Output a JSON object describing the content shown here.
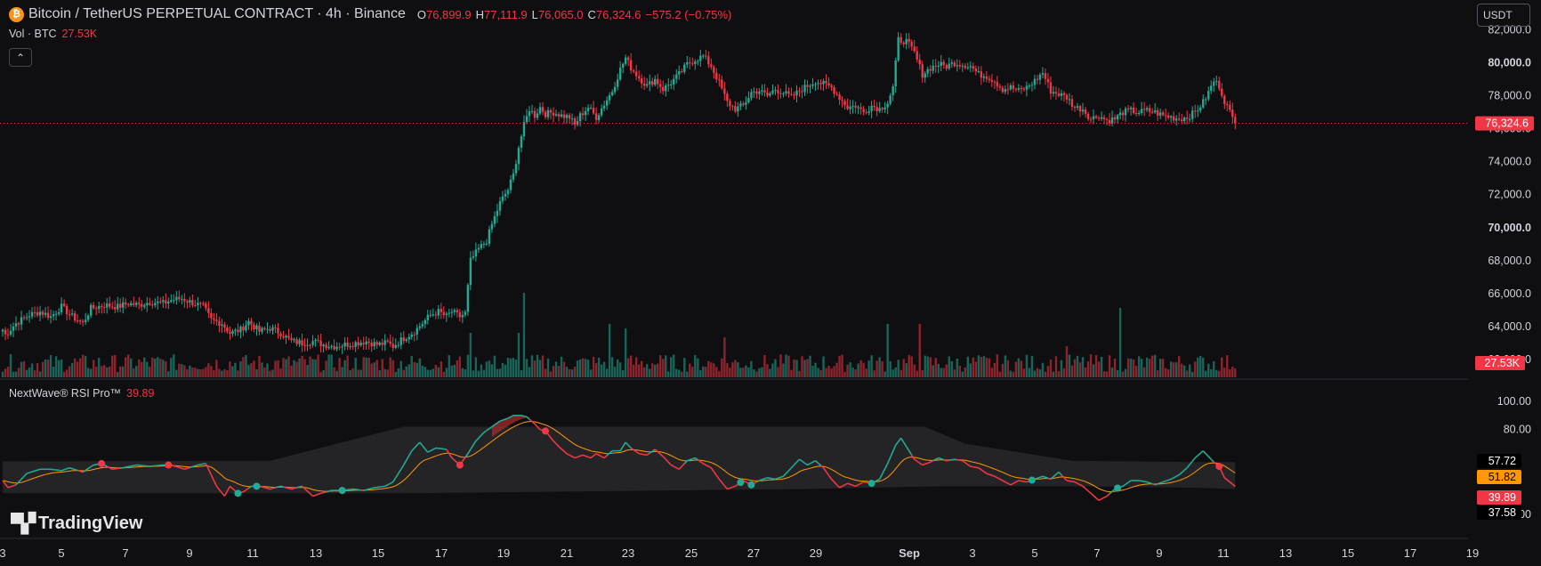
{
  "header": {
    "coin_icon": "bitcoin-icon",
    "coin_glyph": "₿",
    "symbol": "Bitcoin / TetherUS PERPETUAL CONTRACT · 4h · Binance",
    "open_label": "O",
    "open": "76,899.9",
    "high_label": "H",
    "high": "77,111.9",
    "low_label": "L",
    "low": "76,065.0",
    "close_label": "C",
    "close": "76,324.6",
    "change": "−575.2 (−0.75%)"
  },
  "volume": {
    "label": "Vol · BTC",
    "value": "27.53K"
  },
  "collapse_glyph": "⌃",
  "currency": "USDT",
  "price_axis": {
    "ticks": [
      "82,000.0",
      "80,000.0",
      "78,000.0",
      "76,000.0",
      "74,000.0",
      "72,000.0",
      "70,000.0",
      "68,000.0",
      "66,000.0",
      "64,000.0",
      "62,000.0"
    ],
    "last_price_tag": "76,324.6",
    "volume_tag": "27.53K"
  },
  "rsi": {
    "label": "NextWave® RSI Pro™",
    "value": "39.89",
    "axis_ticks": [
      "100.00",
      "80.00",
      "20.00"
    ],
    "tags": [
      "57.72",
      "51.82",
      "39.89",
      "37.58"
    ]
  },
  "time_axis": [
    "3",
    "5",
    "7",
    "9",
    "11",
    "13",
    "15",
    "17",
    "19",
    "21",
    "23",
    "25",
    "27",
    "29",
    "Sep",
    "3",
    "5",
    "7",
    "9",
    "11",
    "13",
    "15",
    "17",
    "19"
  ],
  "watermark": "TradingView",
  "colors": {
    "up": "#22ab94",
    "down": "#f23645",
    "ma": "#ff9800",
    "bg": "#0f0e11"
  },
  "chart_data": {
    "type": "candlestick",
    "interval": "4h",
    "price_range": [
      60700,
      83000
    ],
    "last_price": 76324.6,
    "anchors": [
      [
        0,
        63800
      ],
      [
        1,
        63500
      ],
      [
        5,
        64200
      ],
      [
        10,
        64700
      ],
      [
        14,
        64900
      ],
      [
        18,
        64600
      ],
      [
        22,
        65200
      ],
      [
        26,
        64600
      ],
      [
        30,
        64200
      ],
      [
        33,
        65100
      ],
      [
        38,
        65300
      ],
      [
        43,
        65200
      ],
      [
        47,
        65400
      ],
      [
        51,
        65300
      ],
      [
        55,
        65500
      ],
      [
        60,
        65400
      ],
      [
        63,
        65600
      ],
      [
        67,
        65700
      ],
      [
        70,
        65500
      ],
      [
        75,
        65200
      ],
      [
        78,
        64400
      ],
      [
        82,
        64200
      ],
      [
        85,
        63600
      ],
      [
        89,
        63800
      ],
      [
        92,
        64300
      ],
      [
        96,
        63700
      ],
      [
        100,
        63900
      ],
      [
        104,
        63600
      ],
      [
        108,
        63100
      ],
      [
        112,
        63000
      ],
      [
        116,
        63100
      ],
      [
        120,
        62900
      ],
      [
        124,
        62800
      ],
      [
        128,
        62900
      ],
      [
        132,
        63000
      ],
      [
        136,
        63100
      ],
      [
        140,
        62900
      ],
      [
        144,
        63000
      ],
      [
        146,
        62800
      ],
      [
        150,
        63300
      ],
      [
        154,
        63700
      ],
      [
        157,
        64200
      ],
      [
        160,
        64700
      ],
      [
        163,
        64900
      ],
      [
        166,
        64600
      ],
      [
        168,
        64900
      ],
      [
        171,
        64600
      ],
      [
        173,
        64800
      ],
      [
        175,
        68000
      ],
      [
        178,
        68700
      ],
      [
        181,
        69200
      ],
      [
        183,
        70200
      ],
      [
        186,
        71500
      ],
      [
        189,
        72300
      ],
      [
        191,
        73200
      ],
      [
        193,
        74900
      ],
      [
        195,
        76200
      ],
      [
        197,
        77200
      ],
      [
        199,
        76800
      ],
      [
        201,
        77300
      ],
      [
        203,
        76900
      ],
      [
        206,
        77000
      ],
      [
        209,
        76800
      ],
      [
        212,
        76700
      ],
      [
        214,
        76200
      ],
      [
        216,
        76800
      ],
      [
        219,
        77300
      ],
      [
        222,
        76700
      ],
      [
        225,
        77500
      ],
      [
        228,
        78300
      ],
      [
        231,
        79600
      ],
      [
        233,
        80300
      ],
      [
        235,
        79700
      ],
      [
        238,
        79100
      ],
      [
        241,
        78600
      ],
      [
        244,
        79000
      ],
      [
        247,
        78400
      ],
      [
        250,
        78800
      ],
      [
        253,
        79300
      ],
      [
        256,
        79900
      ],
      [
        259,
        80200
      ],
      [
        262,
        80400
      ],
      [
        265,
        79800
      ],
      [
        268,
        78800
      ],
      [
        271,
        77600
      ],
      [
        274,
        77200
      ],
      [
        277,
        77400
      ],
      [
        280,
        78200
      ],
      [
        283,
        78300
      ],
      [
        286,
        78000
      ],
      [
        289,
        78400
      ],
      [
        292,
        78200
      ],
      [
        295,
        77900
      ],
      [
        298,
        78300
      ],
      [
        301,
        78600
      ],
      [
        304,
        78900
      ],
      [
        307,
        78700
      ],
      [
        310,
        78500
      ],
      [
        313,
        77900
      ],
      [
        316,
        77300
      ],
      [
        319,
        77400
      ],
      [
        322,
        77000
      ],
      [
        325,
        77400
      ],
      [
        328,
        77200
      ],
      [
        331,
        77600
      ],
      [
        333,
        78500
      ],
      [
        335,
        81400
      ],
      [
        338,
        81300
      ],
      [
        341,
        80600
      ],
      [
        344,
        79300
      ],
      [
        347,
        79700
      ],
      [
        350,
        79900
      ],
      [
        353,
        79800
      ],
      [
        356,
        80000
      ],
      [
        359,
        79900
      ],
      [
        362,
        79800
      ],
      [
        365,
        79300
      ],
      [
        368,
        79200
      ],
      [
        371,
        78900
      ],
      [
        374,
        78400
      ],
      [
        377,
        78500
      ],
      [
        380,
        78300
      ],
      [
        383,
        78500
      ],
      [
        386,
        78900
      ],
      [
        389,
        79400
      ],
      [
        392,
        78300
      ],
      [
        395,
        78100
      ],
      [
        398,
        77900
      ],
      [
        401,
        77300
      ],
      [
        404,
        77200
      ],
      [
        407,
        76600
      ],
      [
        410,
        76800
      ],
      [
        413,
        76500
      ],
      [
        416,
        76600
      ],
      [
        419,
        77000
      ],
      [
        422,
        77100
      ],
      [
        425,
        77000
      ],
      [
        428,
        77100
      ],
      [
        431,
        77000
      ],
      [
        434,
        76800
      ],
      [
        437,
        76700
      ],
      [
        440,
        76600
      ],
      [
        443,
        76700
      ],
      [
        446,
        77000
      ],
      [
        449,
        77600
      ],
      [
        451,
        78200
      ],
      [
        453,
        78900
      ],
      [
        455,
        78600
      ],
      [
        457,
        77700
      ],
      [
        459,
        77000
      ],
      [
        461,
        76300
      ]
    ],
    "volume_spikes": [
      [
        175,
        50
      ],
      [
        193,
        50
      ],
      [
        195,
        95
      ],
      [
        227,
        60
      ],
      [
        233,
        55
      ],
      [
        331,
        60
      ],
      [
        343,
        60
      ],
      [
        418,
        78
      ],
      [
        398,
        35
      ],
      [
        270,
        45
      ]
    ],
    "rsi_series": [
      [
        0,
        44
      ],
      [
        2,
        39
      ],
      [
        5,
        41
      ],
      [
        9,
        49
      ],
      [
        14,
        52
      ],
      [
        18,
        52
      ],
      [
        22,
        51
      ],
      [
        25,
        53
      ],
      [
        30,
        50
      ],
      [
        34,
        55
      ],
      [
        37,
        56
      ],
      [
        41,
        52
      ],
      [
        45,
        53
      ],
      [
        50,
        55
      ],
      [
        55,
        54
      ],
      [
        60,
        55
      ],
      [
        63,
        55
      ],
      [
        68,
        52
      ],
      [
        73,
        55
      ],
      [
        76,
        56
      ],
      [
        80,
        40
      ],
      [
        83,
        33
      ],
      [
        85,
        40
      ],
      [
        88,
        35
      ],
      [
        90,
        36
      ],
      [
        93,
        40
      ],
      [
        96,
        40
      ],
      [
        100,
        38
      ],
      [
        104,
        40
      ],
      [
        108,
        38
      ],
      [
        112,
        40
      ],
      [
        116,
        33
      ],
      [
        119,
        35
      ],
      [
        123,
        37
      ],
      [
        127,
        37
      ],
      [
        131,
        38
      ],
      [
        135,
        37
      ],
      [
        139,
        39
      ],
      [
        143,
        40
      ],
      [
        146,
        43
      ],
      [
        150,
        55
      ],
      [
        153,
        65
      ],
      [
        156,
        71
      ],
      [
        159,
        64
      ],
      [
        162,
        67
      ],
      [
        166,
        66
      ],
      [
        168,
        60
      ],
      [
        171,
        55
      ],
      [
        174,
        63
      ],
      [
        177,
        72
      ],
      [
        180,
        78
      ],
      [
        183,
        82
      ],
      [
        186,
        86
      ],
      [
        189,
        88
      ],
      [
        191,
        90
      ],
      [
        194,
        90
      ],
      [
        196,
        89
      ],
      [
        199,
        84
      ],
      [
        201,
        80
      ],
      [
        203,
        79
      ],
      [
        206,
        72
      ],
      [
        208,
        68
      ],
      [
        211,
        63
      ],
      [
        214,
        60
      ],
      [
        217,
        62
      ],
      [
        220,
        60
      ],
      [
        222,
        63
      ],
      [
        225,
        60
      ],
      [
        228,
        65
      ],
      [
        231,
        65
      ],
      [
        233,
        71
      ],
      [
        235,
        67
      ],
      [
        238,
        63
      ],
      [
        241,
        62
      ],
      [
        244,
        66
      ],
      [
        247,
        61
      ],
      [
        250,
        55
      ],
      [
        253,
        52
      ],
      [
        256,
        58
      ],
      [
        259,
        60
      ],
      [
        262,
        56
      ],
      [
        265,
        53
      ],
      [
        268,
        45
      ],
      [
        271,
        38
      ],
      [
        274,
        40
      ],
      [
        277,
        44
      ],
      [
        280,
        41
      ],
      [
        283,
        44
      ],
      [
        286,
        46
      ],
      [
        289,
        45
      ],
      [
        292,
        47
      ],
      [
        295,
        53
      ],
      [
        298,
        59
      ],
      [
        301,
        55
      ],
      [
        304,
        58
      ],
      [
        307,
        53
      ],
      [
        310,
        45
      ],
      [
        313,
        39
      ],
      [
        316,
        42
      ],
      [
        319,
        40
      ],
      [
        322,
        43
      ],
      [
        325,
        42
      ],
      [
        328,
        45
      ],
      [
        331,
        56
      ],
      [
        334,
        69
      ],
      [
        336,
        74
      ],
      [
        338,
        68
      ],
      [
        341,
        59
      ],
      [
        344,
        55
      ],
      [
        347,
        57
      ],
      [
        350,
        60
      ],
      [
        353,
        58
      ],
      [
        356,
        59
      ],
      [
        359,
        58
      ],
      [
        362,
        54
      ],
      [
        365,
        53
      ],
      [
        368,
        49
      ],
      [
        371,
        47
      ],
      [
        374,
        44
      ],
      [
        377,
        41
      ],
      [
        380,
        44
      ],
      [
        383,
        43
      ],
      [
        386,
        45
      ],
      [
        389,
        47
      ],
      [
        392,
        45
      ],
      [
        395,
        50
      ],
      [
        398,
        44
      ],
      [
        401,
        43
      ],
      [
        404,
        40
      ],
      [
        407,
        35
      ],
      [
        410,
        30
      ],
      [
        413,
        33
      ],
      [
        416,
        38
      ],
      [
        419,
        40
      ],
      [
        422,
        44
      ],
      [
        425,
        44
      ],
      [
        428,
        43
      ],
      [
        431,
        41
      ],
      [
        434,
        43
      ],
      [
        437,
        45
      ],
      [
        440,
        48
      ],
      [
        443,
        53
      ],
      [
        446,
        60
      ],
      [
        449,
        65
      ],
      [
        451,
        61
      ],
      [
        453,
        57
      ],
      [
        455,
        54
      ],
      [
        457,
        46
      ],
      [
        461,
        39.89
      ]
    ],
    "rsi_range": [
      0,
      110
    ]
  }
}
